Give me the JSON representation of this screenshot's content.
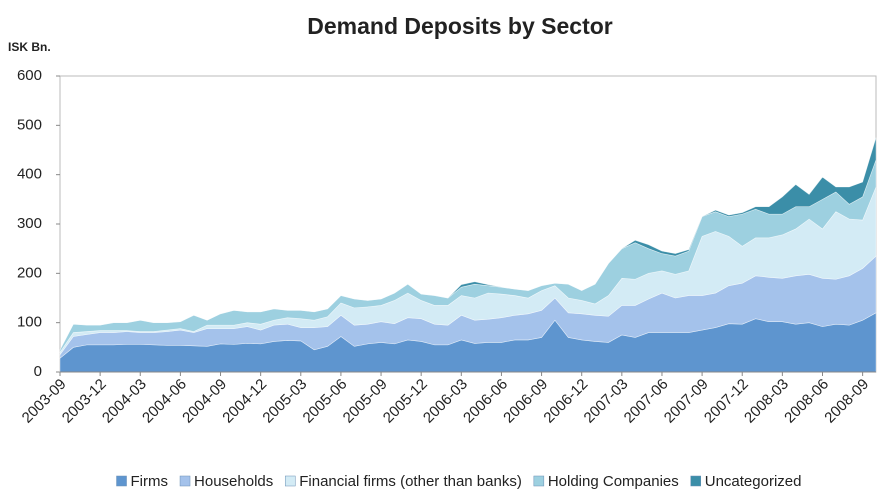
{
  "chart_data": {
    "type": "stacked_area",
    "title": "Demand Deposits by Sector",
    "y_label": "ISK Bn.",
    "categories": [
      "2003-09",
      null,
      null,
      "2003-12",
      null,
      null,
      "2004-03",
      null,
      null,
      "2004-06",
      null,
      null,
      "2004-09",
      null,
      null,
      "2004-12",
      null,
      null,
      "2005-03",
      null,
      null,
      "2005-06",
      null,
      null,
      "2005-09",
      null,
      null,
      "2005-12",
      null,
      null,
      "2006-03",
      null,
      null,
      "2006-06",
      null,
      null,
      "2006-09",
      null,
      null,
      "2006-12",
      null,
      null,
      "2007-03",
      null,
      null,
      "2007-06",
      null,
      null,
      "2007-09",
      null,
      null,
      "2007-12",
      null,
      null,
      "2008-03",
      null,
      null,
      "2008-06",
      null,
      null,
      "2008-09",
      null
    ],
    "series": [
      {
        "name": "Firms",
        "color": "#5e95cf",
        "values": [
          28,
          50,
          55,
          55,
          55,
          56,
          56,
          55,
          54,
          54,
          53,
          52,
          57,
          56,
          58,
          57,
          62,
          64,
          63,
          45,
          52,
          72,
          52,
          57,
          60,
          57,
          65,
          62,
          55,
          55,
          65,
          58,
          60,
          60,
          65,
          65,
          70,
          105,
          70,
          65,
          62,
          60,
          75,
          70,
          80,
          80,
          80,
          80,
          85,
          90,
          98,
          97,
          108,
          102,
          102,
          97,
          100,
          92,
          97,
          95,
          105,
          120
        ]
      },
      {
        "name": "Households",
        "color": "#a4c2eb",
        "values": [
          7,
          22,
          21,
          25,
          25,
          26,
          24,
          25,
          28,
          31,
          27,
          36,
          31,
          32,
          34,
          28,
          33,
          33,
          27,
          45,
          40,
          43,
          43,
          40,
          42,
          41,
          45,
          46,
          42,
          40,
          50,
          47,
          47,
          50,
          50,
          53,
          55,
          45,
          50,
          53,
          53,
          53,
          60,
          65,
          68,
          80,
          70,
          75,
          70,
          70,
          77,
          83,
          87,
          90,
          88,
          98,
          98,
          98,
          91,
          100,
          105,
          115
        ]
      },
      {
        "name": "Financial firms (other than banks)",
        "color": "#d3ebf5",
        "values": [
          5,
          8,
          6,
          4,
          4,
          2,
          2,
          2,
          3,
          3,
          2,
          7,
          7,
          7,
          8,
          12,
          10,
          13,
          18,
          15,
          20,
          25,
          35,
          35,
          33,
          47,
          50,
          37,
          38,
          40,
          40,
          45,
          53,
          48,
          40,
          32,
          40,
          25,
          30,
          27,
          23,
          42,
          55,
          53,
          52,
          45,
          48,
          50,
          120,
          125,
          100,
          75,
          77,
          80,
          88,
          95,
          112,
          100,
          137,
          115,
          98,
          140
        ]
      },
      {
        "name": "Holding Companies",
        "color": "#9dd0e0",
        "values": [
          5,
          17,
          13,
          11,
          16,
          16,
          23,
          18,
          15,
          14,
          33,
          10,
          23,
          30,
          22,
          25,
          23,
          15,
          17,
          17,
          16,
          15,
          18,
          13,
          13,
          15,
          18,
          13,
          20,
          15,
          17,
          28,
          15,
          14,
          13,
          15,
          10,
          5,
          28,
          20,
          40,
          65,
          60,
          74,
          50,
          35,
          37,
          40,
          40,
          40,
          40,
          65,
          58,
          48,
          42,
          45,
          25,
          60,
          40,
          30,
          47,
          55
        ]
      },
      {
        "name": "Uncategorized",
        "color": "#3b8ea8",
        "values": [
          0,
          0,
          0,
          0,
          0,
          0,
          0,
          0,
          0,
          0,
          0,
          0,
          0,
          0,
          0,
          0,
          0,
          0,
          0,
          0,
          0,
          0,
          0,
          0,
          0,
          0,
          0,
          0,
          0,
          0,
          5,
          5,
          2,
          0,
          0,
          0,
          0,
          0,
          0,
          0,
          0,
          0,
          0,
          5,
          8,
          5,
          5,
          3,
          0,
          3,
          3,
          3,
          5,
          15,
          35,
          45,
          25,
          45,
          10,
          35,
          30,
          45
        ]
      }
    ],
    "ylim": [
      0,
      600
    ],
    "yticks": [
      0,
      100,
      200,
      300,
      400,
      500,
      600
    ],
    "legend": "bottom"
  }
}
